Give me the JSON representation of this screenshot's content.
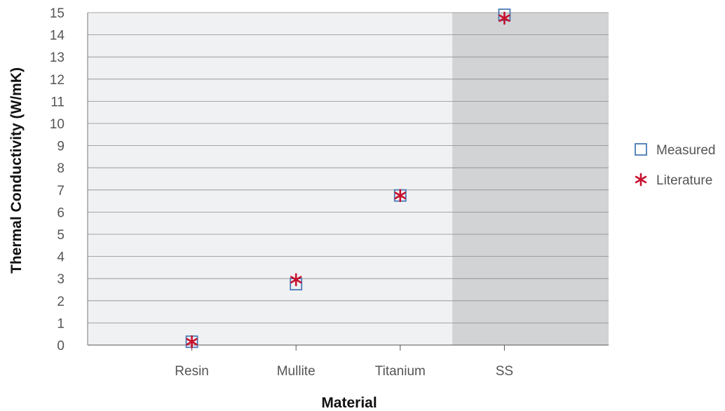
{
  "chart_data": {
    "type": "scatter",
    "title": "",
    "xlabel": "Material",
    "ylabel": "Thermal Conductivity (W/mK)",
    "categories": [
      "Resin",
      "Mullite",
      "Titanium",
      "SS"
    ],
    "ylim": [
      0,
      15
    ],
    "yticks": [
      0,
      1,
      2,
      3,
      4,
      5,
      6,
      7,
      8,
      9,
      10,
      11,
      12,
      13,
      14,
      15
    ],
    "grid": true,
    "legend_position": "right",
    "background_bands": [
      {
        "from_category": "Resin",
        "to_category": "Titanium",
        "color": "#f0f1f3"
      },
      {
        "from_category": "SS",
        "to_category": "SS",
        "color": "#d2d3d5"
      }
    ],
    "series": [
      {
        "name": "Measured",
        "marker": "hollow-square",
        "color": "#4a7ab5",
        "values": [
          0.15,
          2.75,
          6.75,
          14.9
        ]
      },
      {
        "name": "Literature",
        "marker": "asterisk",
        "color": "#c8102e",
        "values": [
          0.15,
          2.95,
          6.75,
          14.75
        ]
      }
    ]
  }
}
